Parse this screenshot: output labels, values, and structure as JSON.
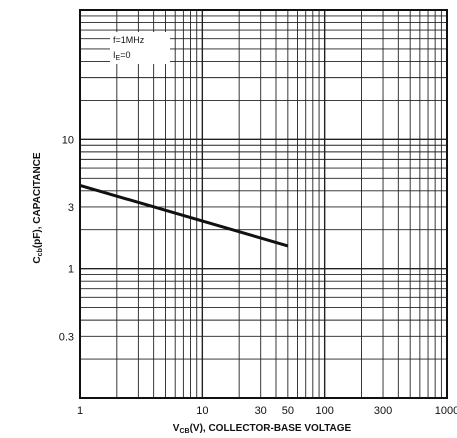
{
  "chart_data": {
    "type": "line",
    "x_scale": "log",
    "y_scale": "log",
    "xlim": [
      1,
      1000
    ],
    "ylim": [
      0.1,
      100
    ],
    "grid": true,
    "x_ticks": [
      {
        "value": 1,
        "label": "1"
      },
      {
        "value": 10,
        "label": "10"
      },
      {
        "value": 30,
        "label": "30"
      },
      {
        "value": 50,
        "label": "50"
      },
      {
        "value": 100,
        "label": "100"
      },
      {
        "value": 300,
        "label": "300"
      },
      {
        "value": 1000,
        "label": "1000"
      }
    ],
    "y_ticks": [
      {
        "value": 10,
        "label": "10"
      },
      {
        "value": 3,
        "label": "3"
      },
      {
        "value": 1,
        "label": "1"
      },
      {
        "value": 0.3,
        "label": "0.3"
      }
    ],
    "xlabel": {
      "main": "V",
      "sub": "CB",
      "rest": "(V), COLLECTOR-BASE VOLTAGE"
    },
    "ylabel": {
      "main": "C",
      "sub": "cb",
      "rest": "(pF), CAPACITANCE"
    },
    "annotations": [
      "f=1MHz",
      "I",
      "E",
      "=0"
    ],
    "series": [
      {
        "x": [
          1,
          50
        ],
        "y": [
          4.4,
          1.5
        ]
      }
    ]
  }
}
